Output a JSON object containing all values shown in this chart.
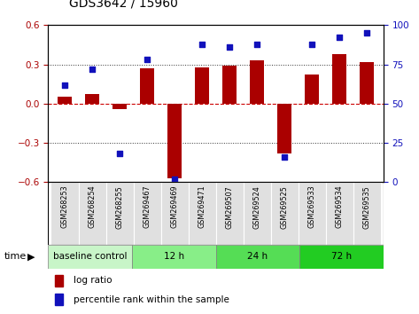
{
  "title": "GDS3642 / 15960",
  "samples": [
    "GSM268253",
    "GSM268254",
    "GSM268255",
    "GSM269467",
    "GSM269469",
    "GSM269471",
    "GSM269507",
    "GSM269524",
    "GSM269525",
    "GSM269533",
    "GSM269534",
    "GSM269535"
  ],
  "log_ratio": [
    0.05,
    0.07,
    -0.04,
    0.27,
    -0.57,
    0.28,
    0.29,
    0.33,
    -0.38,
    0.22,
    0.38,
    0.32
  ],
  "percentile_rank": [
    62,
    72,
    18,
    78,
    2,
    88,
    86,
    88,
    16,
    88,
    92,
    95
  ],
  "bar_color": "#AA0000",
  "dot_color": "#1111BB",
  "ylim": [
    -0.6,
    0.6
  ],
  "ylim_right": [
    0,
    100
  ],
  "yticks_left": [
    -0.6,
    -0.3,
    0.0,
    0.3,
    0.6
  ],
  "yticks_right": [
    0,
    25,
    50,
    75,
    100
  ],
  "hline_zero_color": "#CC0000",
  "hline_dotted_color": "#333333",
  "group_labels": [
    "baseline control",
    "12 h",
    "24 h",
    "72 h"
  ],
  "group_starts": [
    0,
    3,
    6,
    9
  ],
  "group_ends": [
    3,
    6,
    9,
    12
  ],
  "group_colors": [
    "#c8f5c8",
    "#88ee88",
    "#55dd55",
    "#22cc22"
  ],
  "sample_bg_color": "#e0e0e0",
  "bar_width": 0.5
}
